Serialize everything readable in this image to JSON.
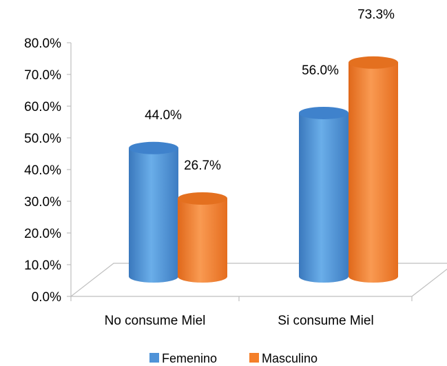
{
  "chart_data": {
    "type": "bar",
    "style": "3d-cylinder",
    "categories": [
      "No consume Miel",
      "Si consume Miel"
    ],
    "series": [
      {
        "name": "Femenino",
        "values": [
          44.0,
          56.0
        ],
        "labels": [
          "44.0%",
          "56.0%"
        ],
        "color": "#4f93d8"
      },
      {
        "name": "Masculino",
        "values": [
          26.7,
          73.3
        ],
        "labels": [
          "26.7%",
          "73.3%"
        ],
        "color": "#f47f2a"
      }
    ],
    "ylim": [
      0,
      80
    ],
    "yticks": [
      0,
      10,
      20,
      30,
      40,
      50,
      60,
      70,
      80
    ],
    "ytick_labels": [
      "0.0%",
      "10.0%",
      "20.0%",
      "30.0%",
      "40.0%",
      "50.0%",
      "60.0%",
      "70.0%",
      "80.0%"
    ],
    "legend_position": "bottom",
    "grid": false
  }
}
